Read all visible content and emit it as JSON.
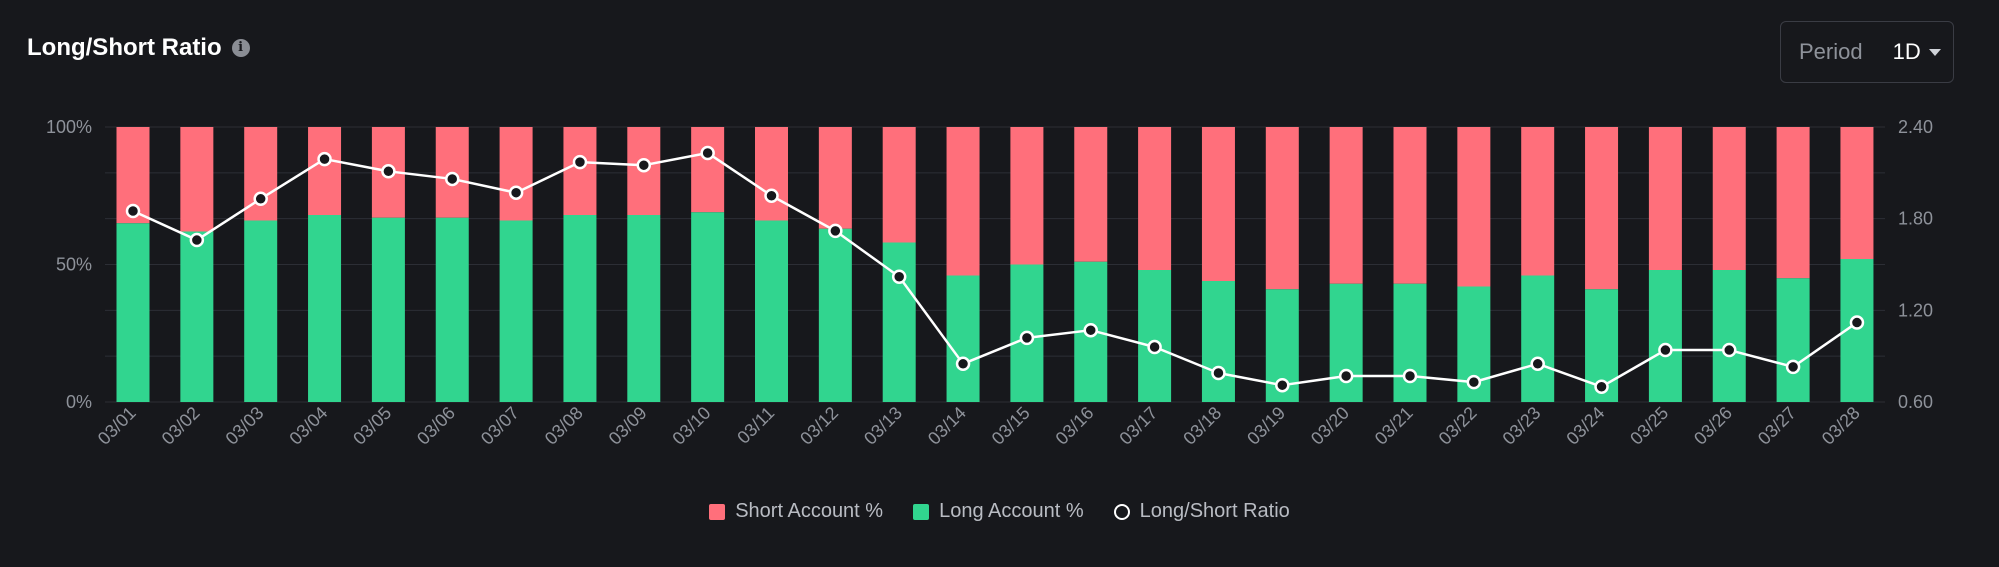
{
  "header": {
    "title": "Long/Short Ratio",
    "info_icon": "info-icon",
    "period_label": "Period",
    "period_value": "1D"
  },
  "colors": {
    "short": "#ff6f7b",
    "long": "#31d58f",
    "ratio_line": "#ffffff",
    "grid": "#2c2e35",
    "axis_text": "#8e929a"
  },
  "legend": {
    "short": "Short Account %",
    "long": "Long Account %",
    "ratio": "Long/Short Ratio"
  },
  "chart_data": {
    "type": "bar",
    "stacked": true,
    "categories": [
      "03/01",
      "03/02",
      "03/03",
      "03/04",
      "03/05",
      "03/06",
      "03/07",
      "03/08",
      "03/09",
      "03/10",
      "03/11",
      "03/12",
      "03/13",
      "03/14",
      "03/15",
      "03/16",
      "03/17",
      "03/18",
      "03/19",
      "03/20",
      "03/21",
      "03/22",
      "03/23",
      "03/24",
      "03/25",
      "03/26",
      "03/27",
      "03/28"
    ],
    "series": [
      {
        "name": "Long Account %",
        "axis": "left",
        "values": [
          65,
          62,
          66,
          68,
          67,
          67,
          66,
          68,
          68,
          69,
          66,
          63,
          58,
          46,
          50,
          51,
          48,
          44,
          41,
          43,
          43,
          42,
          46,
          41,
          48,
          48,
          45,
          52
        ]
      },
      {
        "name": "Short Account %",
        "axis": "left",
        "values": [
          35,
          38,
          34,
          32,
          33,
          33,
          34,
          32,
          32,
          31,
          34,
          37,
          42,
          54,
          50,
          49,
          52,
          56,
          59,
          57,
          57,
          58,
          54,
          59,
          52,
          52,
          55,
          48
        ]
      },
      {
        "name": "Long/Short Ratio",
        "type": "line",
        "axis": "right",
        "values": [
          1.85,
          1.66,
          1.93,
          2.19,
          2.11,
          2.06,
          1.97,
          2.17,
          2.15,
          2.23,
          1.95,
          1.72,
          1.42,
          0.85,
          1.02,
          1.07,
          0.96,
          0.79,
          0.71,
          0.77,
          0.77,
          0.73,
          0.85,
          0.7,
          0.94,
          0.94,
          0.83,
          1.12
        ]
      }
    ],
    "y_left": {
      "min": 0,
      "max": 100,
      "ticks": [
        "0%",
        "50%",
        "100%"
      ]
    },
    "y_right": {
      "min": 0.6,
      "max": 2.4,
      "ticks": [
        "0.60",
        "1.20",
        "1.80",
        "2.40"
      ]
    },
    "grid": true,
    "legend_position": "bottom-center"
  }
}
